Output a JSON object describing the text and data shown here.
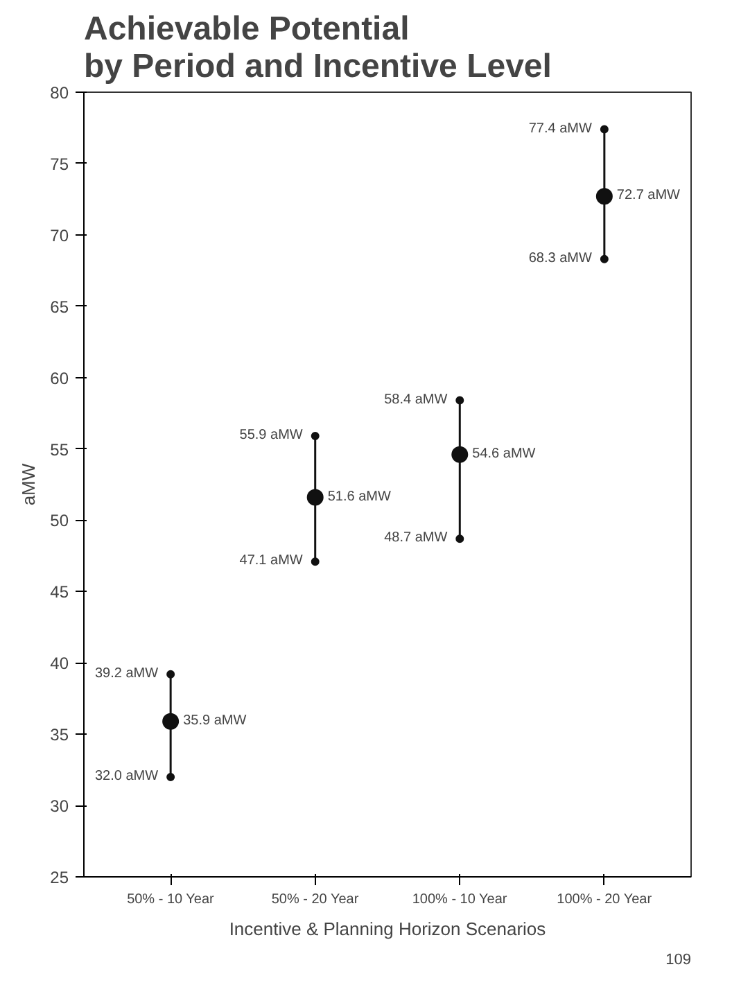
{
  "chart_data": {
    "type": "scatter",
    "title": "Achievable Potential\nby Period and Incentive Level",
    "xlabel": "Incentive & Planning Horizon Scenarios",
    "ylabel": "aMW",
    "categories": [
      "50% - 10 Year",
      "50% - 20 Year",
      "100% - 10 Year",
      "100% - 20 Year"
    ],
    "series": [
      {
        "color": "#111111",
        "values": [
          35.9,
          51.6,
          54.6,
          72.7
        ],
        "errors": [
          [
            32.0,
            39.2
          ],
          [
            47.1,
            55.9
          ],
          [
            48.7,
            58.4
          ],
          [
            68.3,
            77.4
          ]
        ],
        "value_labels": [
          "35.9 aMW",
          "51.6 aMW",
          "54.6 aMW",
          "72.7 aMW"
        ]
      }
    ],
    "ylim": [
      25,
      80
    ],
    "yticks": [
      25,
      30,
      35,
      40,
      45,
      50,
      55,
      60,
      65,
      70,
      75,
      80
    ],
    "marker": "circle",
    "grid": false,
    "annotations": [
      {
        "text": "39.2 aMW",
        "x": "50% - 10 Year",
        "y": 39.2
      },
      {
        "text": "32.0 aMW",
        "x": "50% - 10 Year",
        "y": 32.0
      },
      {
        "text": "55.9 aMW",
        "x": "50% - 20 Year",
        "y": 55.9
      },
      {
        "text": "47.1 aMW",
        "x": "50% - 20 Year",
        "y": 47.1
      },
      {
        "text": "58.4 aMW",
        "x": "100% - 10 Year",
        "y": 58.4
      },
      {
        "text": "48.7 aMW",
        "x": "100% - 10 Year",
        "y": 48.7
      },
      {
        "text": "77.4 aMW",
        "x": "100% - 20 Year",
        "y": 77.4
      },
      {
        "text": "68.3 aMW",
        "x": "100% - 20 Year",
        "y": 68.3
      },
      "109"
    ]
  }
}
